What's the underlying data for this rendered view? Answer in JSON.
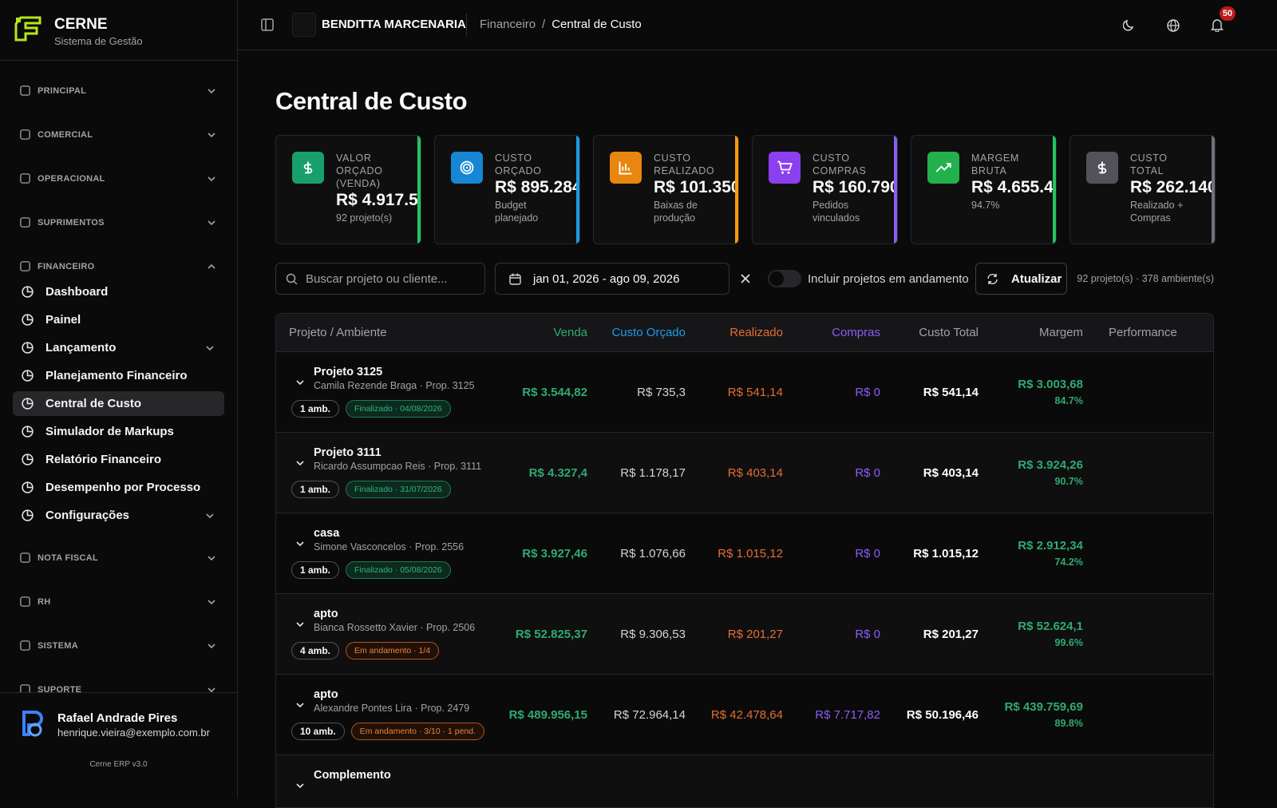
{
  "brand": {
    "name": "CERNE",
    "subtitle": "Sistema de Gestão"
  },
  "sidebar": {
    "sections_top": [
      "PRINCIPAL",
      "COMERCIAL",
      "OPERACIONAL",
      "SUPRIMENTOS"
    ],
    "open_section": "FINANCEIRO",
    "items": [
      "Dashboard",
      "Painel",
      "Lançamento",
      "Planejamento Financeiro",
      "Central de Custo",
      "Simulador de Markups",
      "Relatório Financeiro",
      "Desempenho por Processo",
      "Configurações"
    ],
    "sections_bottom": [
      "NOTA FISCAL",
      "RH",
      "SISTEMA",
      "SUPORTE"
    ]
  },
  "user": {
    "name": "Rafael Andrade Pires",
    "email": "henrique.vieira@exemplo.com.br",
    "version": "Cerne ERP v3.0"
  },
  "topbar": {
    "company": "BENDITTA MARCENARIA",
    "breadcrumb": [
      "Financeiro",
      "Central de Custo"
    ],
    "notifications": 50
  },
  "page": {
    "title": "Central de Custo"
  },
  "cards": [
    {
      "label": "VALOR ORÇADO (VENDA)",
      "value": "R$ 4.917.5",
      "sub": "92 projeto(s)"
    },
    {
      "label": "CUSTO ORÇADO",
      "value": "R$ 895.284",
      "sub": "Budget planejado"
    },
    {
      "label": "CUSTO REALIZADO",
      "value": "R$ 101.350",
      "sub": "Baixas de produção"
    },
    {
      "label": "CUSTO COMPRAS",
      "value": "R$ 160.790",
      "sub": "Pedidos vinculados"
    },
    {
      "label": "MARGEM BRUTA",
      "value": "R$ 4.655.4",
      "sub": "94.7%"
    },
    {
      "label": "CUSTO TOTAL",
      "value": "R$ 262.140",
      "sub": "Realizado + Compras"
    }
  ],
  "toolbar": {
    "search_placeholder": "Buscar projeto ou cliente...",
    "date_range": "jan 01, 2026 - ago 09, 2026",
    "toggle_label": "Incluir projetos em andamento",
    "button": "Atualizar",
    "summary": "92 projeto(s) · 378 ambiente(s)"
  },
  "table": {
    "headers": [
      "Projeto / Ambiente",
      "Venda",
      "Custo Orçado",
      "Realizado",
      "Compras",
      "Custo Total",
      "Margem",
      "Performance"
    ],
    "rows": [
      {
        "name": "Projeto 3125",
        "client": "Camila Rezende Braga · Prop. 3125",
        "amb": "1 amb.",
        "status": "Finalizado · 04/08/2026",
        "venda": "R$ 3.544,82",
        "orcado": "R$ 735,3",
        "realizado": "R$ 541,14",
        "compras": "R$ 0",
        "total": "R$ 541,14",
        "margem": "R$ 3.003,68",
        "margem_pct": "84.7%"
      },
      {
        "name": "Projeto 3111",
        "client": "Ricardo Assumpcao Reis · Prop. 3111",
        "amb": "1 amb.",
        "status": "Finalizado · 31/07/2026",
        "venda": "R$ 4.327,4",
        "orcado": "R$ 1.178,17",
        "realizado": "R$ 403,14",
        "compras": "R$ 0",
        "total": "R$ 403,14",
        "margem": "R$ 3.924,26",
        "margem_pct": "90.7%"
      },
      {
        "name": "casa",
        "client": "Simone Vasconcelos · Prop. 2556",
        "amb": "1 amb.",
        "status": "Finalizado · 05/08/2026",
        "venda": "R$ 3.927,46",
        "orcado": "R$ 1.076,66",
        "realizado": "R$ 1.015,12",
        "compras": "R$ 0",
        "total": "R$ 1.015,12",
        "margem": "R$ 2.912,34",
        "margem_pct": "74.2%"
      },
      {
        "name": "apto",
        "client": "Bianca Rossetto Xavier · Prop. 2506",
        "amb": "4 amb.",
        "status": "Em andamento · 1/4",
        "venda": "R$ 52.825,37",
        "orcado": "R$ 9.306,53",
        "realizado": "R$ 201,27",
        "compras": "R$ 0",
        "total": "R$ 201,27",
        "margem": "R$ 52.624,1",
        "margem_pct": "99.6%"
      },
      {
        "name": "apto",
        "client": "Alexandre Pontes Lira · Prop. 2479",
        "amb": "10 amb.",
        "status": "Em andamento · 3/10 · 1 pend.",
        "venda": "R$ 489.956,15",
        "orcado": "R$ 72.964,14",
        "realizado": "R$ 42.478,64",
        "compras": "R$ 7.717,82",
        "total": "R$ 50.196,46",
        "margem": "R$ 439.759,69",
        "margem_pct": "89.8%"
      },
      {
        "name": "Complemento"
      }
    ]
  }
}
